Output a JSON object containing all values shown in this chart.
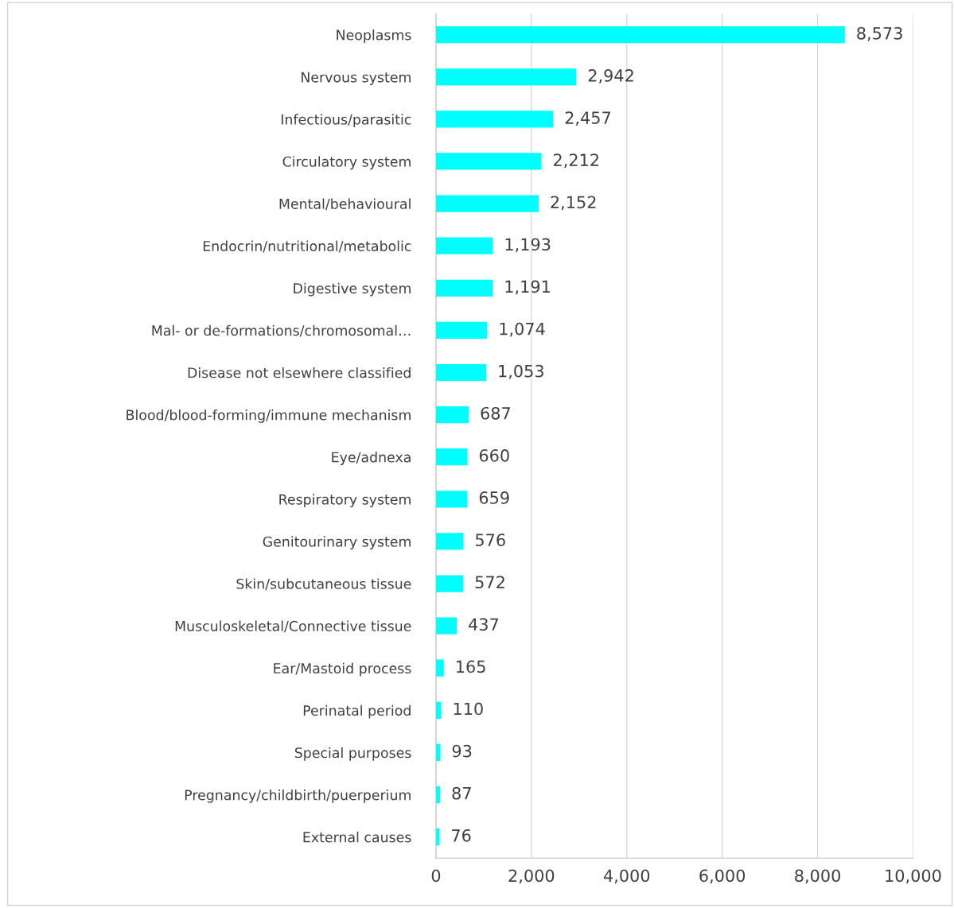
{
  "chart_data": {
    "type": "bar",
    "orientation": "horizontal",
    "categories": [
      "Neoplasms",
      "Nervous system",
      "Infectious/parasitic",
      "Circulatory system",
      "Mental/behavioural",
      "Endocrin/nutritional/metabolic",
      "Digestive system",
      "Mal- or de-formations/chromosomal…",
      "Disease not elsewhere classified",
      "Blood/blood-forming/immune mechanism",
      "Eye/adnexa",
      "Respiratory system",
      "Genitourinary system",
      "Skin/subcutaneous tissue",
      "Musculoskeletal/Connective tissue",
      "Ear/Mastoid process",
      "Perinatal period",
      "Special purposes",
      "Pregnancy/childbirth/puerperium",
      "External causes"
    ],
    "values": [
      8573,
      2942,
      2457,
      2212,
      2152,
      1193,
      1191,
      1074,
      1053,
      687,
      660,
      659,
      576,
      572,
      437,
      165,
      110,
      93,
      87,
      76
    ],
    "value_labels": [
      "8,573",
      "2,942",
      "2,457",
      "2,212",
      "2,152",
      "1,193",
      "1,191",
      "1,074",
      "1,053",
      "687",
      "660",
      "659",
      "576",
      "572",
      "437",
      "165",
      "110",
      "93",
      "87",
      "76"
    ],
    "color": "#00ffff",
    "xlim": [
      0,
      10000
    ],
    "xticks": [
      0,
      {
        "value": 2000,
        "label": "2,000"
      },
      {
        "value": 4000,
        "label": "4,000"
      },
      {
        "value": 6000,
        "label": "6,000"
      },
      {
        "value": 8000,
        "label": "8,000"
      },
      {
        "value": 10000,
        "label": "10,000"
      }
    ],
    "grid": "x"
  }
}
